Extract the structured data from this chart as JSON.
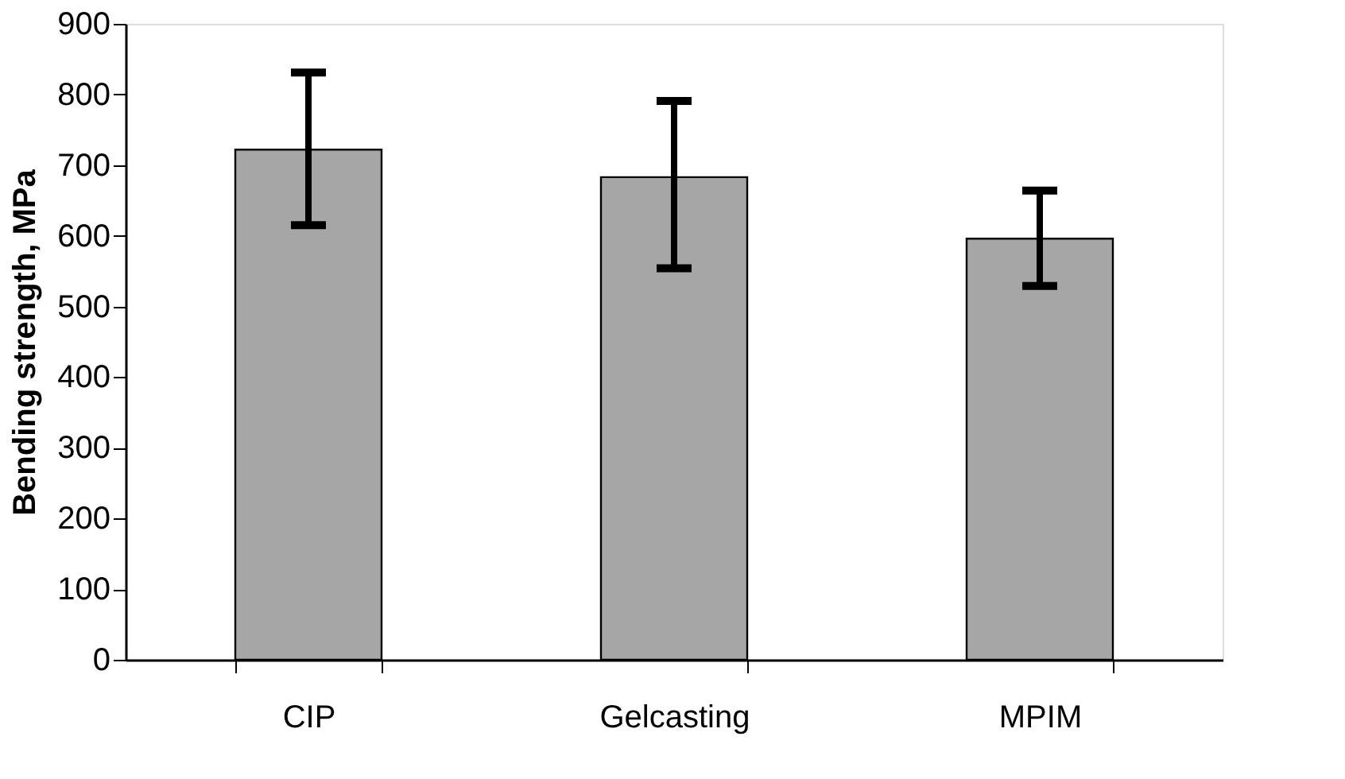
{
  "chart_data": {
    "type": "bar",
    "ylabel": "Bending strength, MPa",
    "categories": [
      "CIP",
      "Gelcasting",
      "MPIM"
    ],
    "values": [
      722,
      683,
      596
    ],
    "errors": [
      [
        615,
        831
      ],
      [
        554,
        791
      ],
      [
        529,
        664
      ]
    ],
    "color": "#a6a6a6",
    "ylim": [
      0,
      900
    ],
    "yticks": [
      0,
      100,
      200,
      300,
      400,
      500,
      600,
      700,
      800,
      900
    ]
  }
}
